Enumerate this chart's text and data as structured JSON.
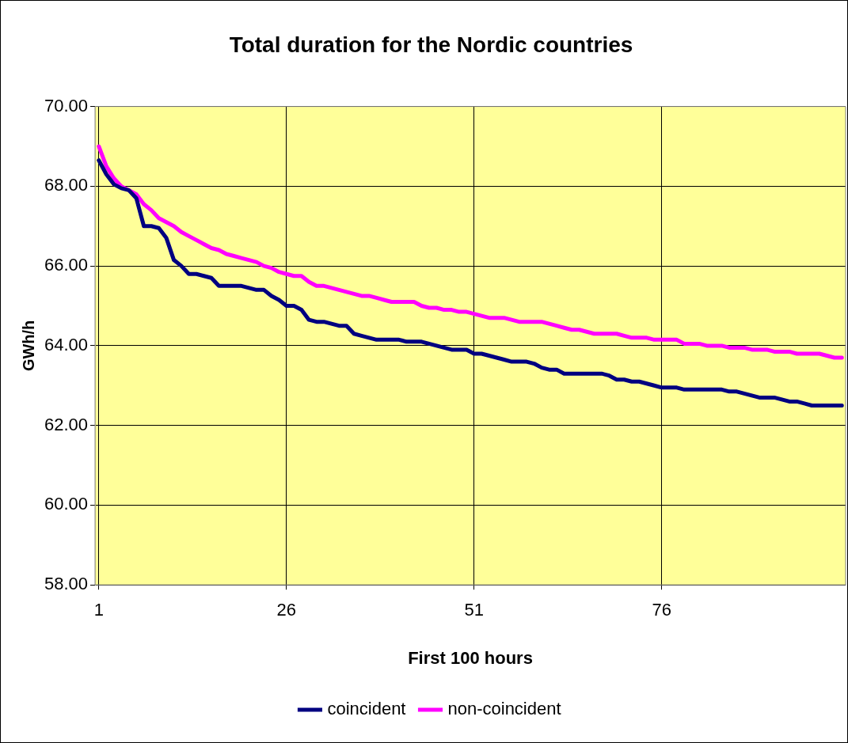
{
  "chart_data": {
    "type": "line",
    "title": "Total duration for the Nordic countries",
    "xlabel": "First 100 hours",
    "ylabel": "GWh/h",
    "x": [
      1,
      2,
      3,
      4,
      5,
      6,
      7,
      8,
      9,
      10,
      11,
      12,
      13,
      14,
      15,
      16,
      17,
      18,
      19,
      20,
      21,
      22,
      23,
      24,
      25,
      26,
      27,
      28,
      29,
      30,
      31,
      32,
      33,
      34,
      35,
      36,
      37,
      38,
      39,
      40,
      41,
      42,
      43,
      44,
      45,
      46,
      47,
      48,
      49,
      50,
      51,
      52,
      53,
      54,
      55,
      56,
      57,
      58,
      59,
      60,
      61,
      62,
      63,
      64,
      65,
      66,
      67,
      68,
      69,
      70,
      71,
      72,
      73,
      74,
      75,
      76,
      77,
      78,
      79,
      80,
      81,
      82,
      83,
      84,
      85,
      86,
      87,
      88,
      89,
      90,
      91,
      92,
      93,
      94,
      95,
      96,
      97,
      98,
      99,
      100
    ],
    "series": [
      {
        "name": "coincident",
        "color": "#000080",
        "values": [
          68.65,
          68.3,
          68.05,
          67.95,
          67.9,
          67.7,
          67.0,
          67.0,
          66.95,
          66.7,
          66.15,
          66.0,
          65.8,
          65.8,
          65.75,
          65.7,
          65.5,
          65.5,
          65.5,
          65.5,
          65.45,
          65.4,
          65.4,
          65.25,
          65.15,
          65.0,
          65.0,
          64.9,
          64.65,
          64.6,
          64.6,
          64.55,
          64.5,
          64.5,
          64.3,
          64.25,
          64.2,
          64.15,
          64.15,
          64.15,
          64.15,
          64.1,
          64.1,
          64.1,
          64.05,
          64.0,
          63.95,
          63.9,
          63.9,
          63.9,
          63.8,
          63.8,
          63.75,
          63.7,
          63.65,
          63.6,
          63.6,
          63.6,
          63.55,
          63.45,
          63.4,
          63.4,
          63.3,
          63.3,
          63.3,
          63.3,
          63.3,
          63.3,
          63.25,
          63.15,
          63.15,
          63.1,
          63.1,
          63.05,
          63.0,
          62.95,
          62.95,
          62.95,
          62.9,
          62.9,
          62.9,
          62.9,
          62.9,
          62.9,
          62.85,
          62.85,
          62.8,
          62.75,
          62.7,
          62.7,
          62.7,
          62.65,
          62.6,
          62.6,
          62.55,
          62.5,
          62.5,
          62.5,
          62.5,
          62.5
        ]
      },
      {
        "name": "non-coincident",
        "color": "#ff00ff",
        "values": [
          69.0,
          68.5,
          68.2,
          68.0,
          67.9,
          67.8,
          67.55,
          67.4,
          67.2,
          67.1,
          67.0,
          66.85,
          66.75,
          66.65,
          66.55,
          66.45,
          66.4,
          66.3,
          66.25,
          66.2,
          66.15,
          66.1,
          66.0,
          65.95,
          65.85,
          65.8,
          65.75,
          65.75,
          65.6,
          65.5,
          65.5,
          65.45,
          65.4,
          65.35,
          65.3,
          65.25,
          65.25,
          65.2,
          65.15,
          65.1,
          65.1,
          65.1,
          65.1,
          65.0,
          64.95,
          64.95,
          64.9,
          64.9,
          64.85,
          64.85,
          64.8,
          64.75,
          64.7,
          64.7,
          64.7,
          64.65,
          64.6,
          64.6,
          64.6,
          64.6,
          64.55,
          64.5,
          64.45,
          64.4,
          64.4,
          64.35,
          64.3,
          64.3,
          64.3,
          64.3,
          64.25,
          64.2,
          64.2,
          64.2,
          64.15,
          64.15,
          64.15,
          64.15,
          64.05,
          64.05,
          64.05,
          64.0,
          64.0,
          64.0,
          63.95,
          63.95,
          63.95,
          63.9,
          63.9,
          63.9,
          63.85,
          63.85,
          63.85,
          63.8,
          63.8,
          63.8,
          63.8,
          63.75,
          63.7,
          63.7
        ]
      }
    ],
    "xlim": [
      0.5,
      100.5
    ],
    "xticks": [
      1,
      26,
      51,
      76
    ],
    "ylim": [
      58,
      70
    ],
    "yticks": [
      {
        "value": 58,
        "label": "58.00"
      },
      {
        "value": 60,
        "label": "60.00"
      },
      {
        "value": 62,
        "label": "62.00"
      },
      {
        "value": 64,
        "label": "64.00"
      },
      {
        "value": 66,
        "label": "66.00"
      },
      {
        "value": 68,
        "label": "68.00"
      },
      {
        "value": 70,
        "label": "70.00"
      }
    ],
    "grid": true,
    "legend": "bottom",
    "marker": "none",
    "line_style": "solid"
  }
}
